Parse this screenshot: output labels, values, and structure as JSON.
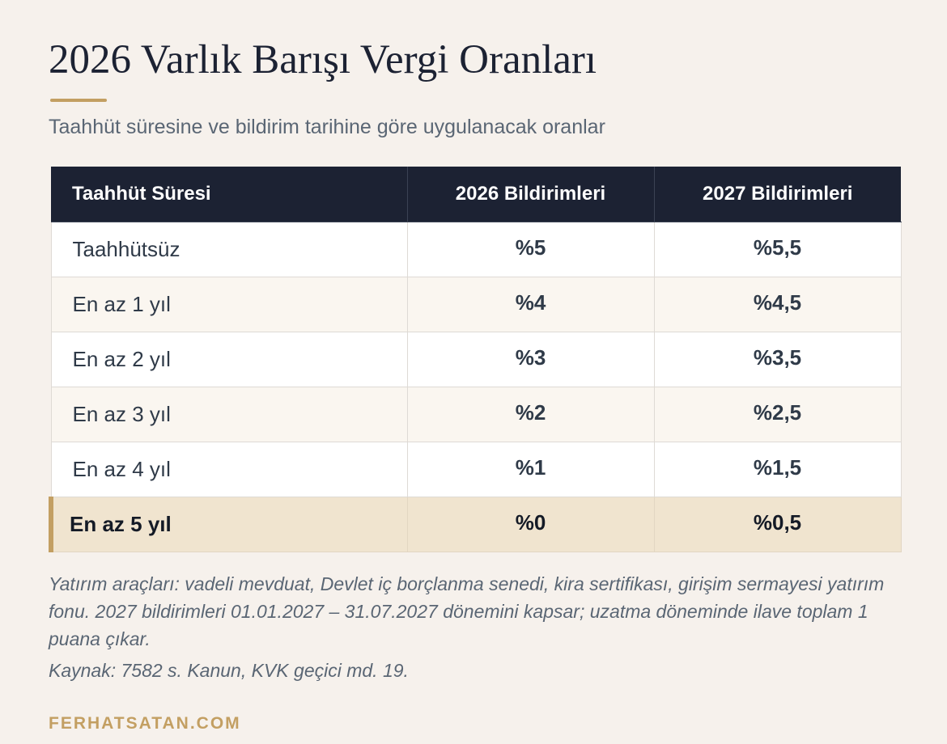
{
  "page": {
    "title": "2026 Varlık Barışı Vergi Oranları",
    "subtitle": "Taahhüt süresine ve bildirim tarihine göre uygulanacak oranlar"
  },
  "table": {
    "headers": [
      "Taahhüt Süresi",
      "2026 Bildirimleri",
      "2027 Bildirimleri"
    ],
    "rows": [
      {
        "period": "Taahhütsüz",
        "rate_2026": "%5",
        "rate_2027": "%5,5"
      },
      {
        "period": "En az 1 yıl",
        "rate_2026": "%4",
        "rate_2027": "%4,5"
      },
      {
        "period": "En az 2 yıl",
        "rate_2026": "%3",
        "rate_2027": "%3,5"
      },
      {
        "period": "En az 3 yıl",
        "rate_2026": "%2",
        "rate_2027": "%2,5"
      },
      {
        "period": "En az 4 yıl",
        "rate_2026": "%1",
        "rate_2027": "%1,5"
      },
      {
        "period": "En az 5 yıl",
        "rate_2026": "%0",
        "rate_2027": "%0,5"
      }
    ]
  },
  "notes": {
    "footnote": "Yatırım araçları: vadeli mevduat, Devlet iç borçlanma senedi, kira sertifikası, girişim sermayesi yatırım fonu. 2027 bildirimleri 01.01.2027 – 31.07.2027 dönemini kapsar; uzatma döneminde ilave toplam 1 puana çıkar.",
    "source": "Kaynak: 7582 s. Kanun, KVK geçici md. 19."
  },
  "brand": "FERHATSATAN.COM",
  "colors": {
    "background": "#f6f1ec",
    "header_bg": "#1c2233",
    "accent": "#c39f62",
    "highlight_row": "#f0e4cf"
  }
}
